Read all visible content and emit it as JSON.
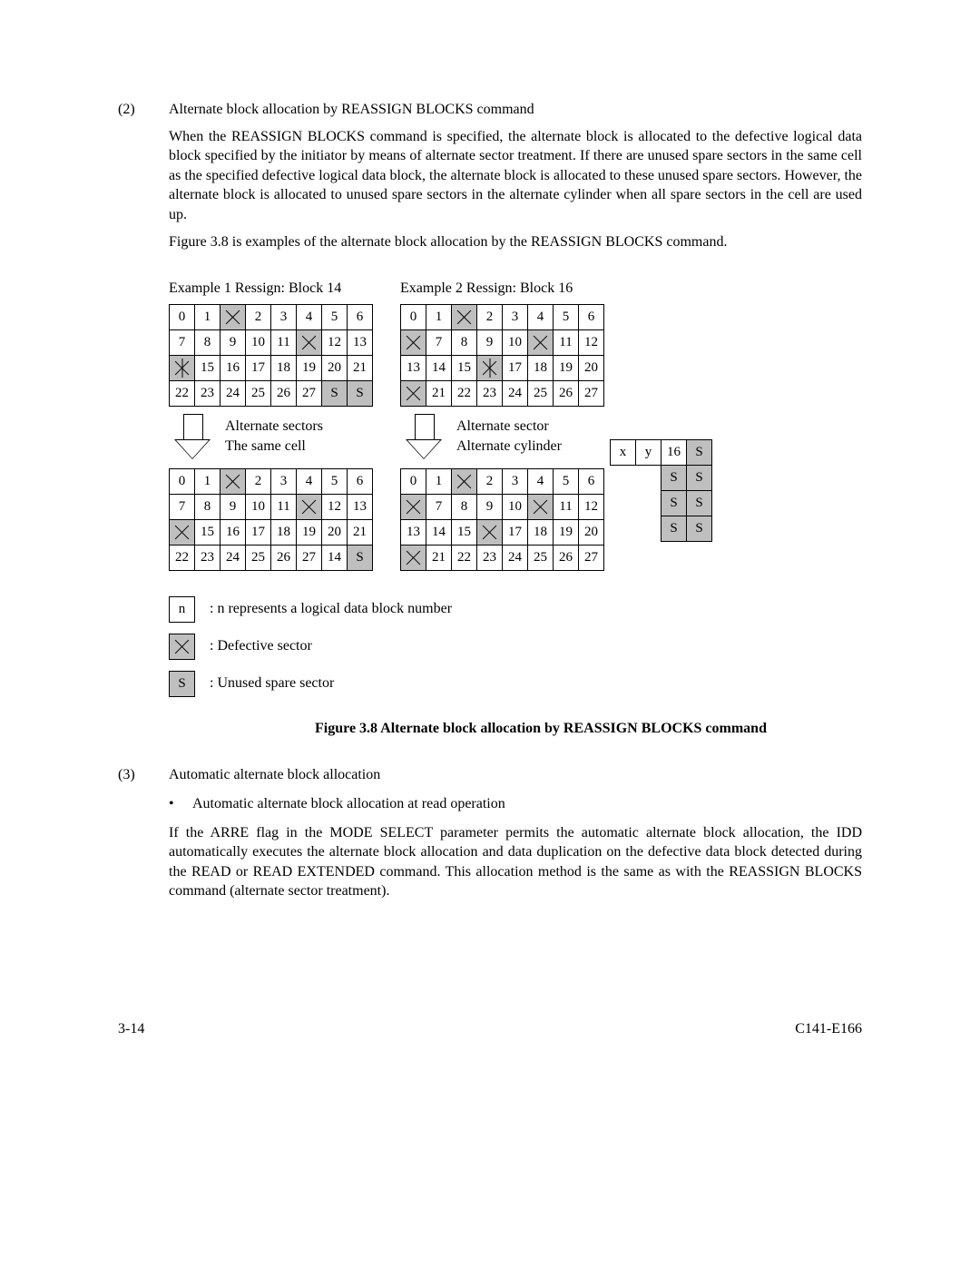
{
  "section2_num": "(2)",
  "section2_title": "Alternate block allocation by REASSIGN BLOCKS command",
  "section2_para1": "When the REASSIGN BLOCKS command is specified, the alternate block is allocated to the defective logical data block specified by the initiator by means of alternate sector treatment.  If there are unused spare sectors in the same cell as the specified defective logical data block, the alternate block is allocated to these unused spare sectors.  However, the alternate block is allocated to unused spare sectors in the alternate cylinder when all spare sectors in the cell are used up.",
  "section2_para2": "Figure 3.8 is examples of the alternate block allocation by the REASSIGN BLOCKS command.",
  "ex1_title": "Example 1 Ressign: Block 14",
  "ex2_title": "Example 2 Ressign: Block 16",
  "arrow1_line1": "Alternate sectors",
  "arrow1_line2": "The same cell",
  "arrow2_line1": "Alternate sector",
  "arrow2_line2": "Alternate cylinder",
  "ex1_top": [
    [
      {
        "t": "0"
      },
      {
        "t": "1"
      },
      {
        "x": true,
        "s": true
      },
      {
        "t": "2"
      },
      {
        "t": "3"
      },
      {
        "t": "4"
      },
      {
        "t": "5"
      },
      {
        "t": "6"
      }
    ],
    [
      {
        "t": "7"
      },
      {
        "t": "8"
      },
      {
        "t": "9"
      },
      {
        "t": "10"
      },
      {
        "t": "11"
      },
      {
        "x": true,
        "s": true
      },
      {
        "t": "12"
      },
      {
        "t": "13"
      }
    ],
    [
      {
        "x": true,
        "s": true,
        "dbl": true
      },
      {
        "t": "15"
      },
      {
        "t": "16"
      },
      {
        "t": "17"
      },
      {
        "t": "18"
      },
      {
        "t": "19"
      },
      {
        "t": "20"
      },
      {
        "t": "21"
      }
    ],
    [
      {
        "t": "22"
      },
      {
        "t": "23"
      },
      {
        "t": "24"
      },
      {
        "t": "25"
      },
      {
        "t": "26"
      },
      {
        "t": "27"
      },
      {
        "t": "S",
        "s": true
      },
      {
        "t": "S",
        "s": true
      }
    ]
  ],
  "ex1_bot": [
    [
      {
        "t": "0"
      },
      {
        "t": "1"
      },
      {
        "x": true,
        "s": true
      },
      {
        "t": "2"
      },
      {
        "t": "3"
      },
      {
        "t": "4"
      },
      {
        "t": "5"
      },
      {
        "t": "6"
      }
    ],
    [
      {
        "t": "7"
      },
      {
        "t": "8"
      },
      {
        "t": "9"
      },
      {
        "t": "10"
      },
      {
        "t": "11"
      },
      {
        "x": true,
        "s": true
      },
      {
        "t": "12"
      },
      {
        "t": "13"
      }
    ],
    [
      {
        "x": true,
        "s": true
      },
      {
        "t": "15"
      },
      {
        "t": "16"
      },
      {
        "t": "17"
      },
      {
        "t": "18"
      },
      {
        "t": "19"
      },
      {
        "t": "20"
      },
      {
        "t": "21"
      }
    ],
    [
      {
        "t": "22"
      },
      {
        "t": "23"
      },
      {
        "t": "24"
      },
      {
        "t": "25"
      },
      {
        "t": "26"
      },
      {
        "t": "27"
      },
      {
        "t": "14"
      },
      {
        "t": "S",
        "s": true
      }
    ]
  ],
  "ex2_top": [
    [
      {
        "t": "0"
      },
      {
        "t": "1"
      },
      {
        "x": true,
        "s": true
      },
      {
        "t": "2"
      },
      {
        "t": "3"
      },
      {
        "t": "4"
      },
      {
        "t": "5"
      },
      {
        "t": "6"
      }
    ],
    [
      {
        "x": true,
        "s": true
      },
      {
        "t": "7"
      },
      {
        "t": "8"
      },
      {
        "t": "9"
      },
      {
        "t": "10"
      },
      {
        "x": true,
        "s": true
      },
      {
        "t": "11"
      },
      {
        "t": "12"
      }
    ],
    [
      {
        "t": "13"
      },
      {
        "t": "14"
      },
      {
        "t": "15"
      },
      {
        "x": true,
        "s": true,
        "dbl": true
      },
      {
        "t": "17"
      },
      {
        "t": "18"
      },
      {
        "t": "19"
      },
      {
        "t": "20"
      }
    ],
    [
      {
        "x": true,
        "s": true
      },
      {
        "t": "21"
      },
      {
        "t": "22"
      },
      {
        "t": "23"
      },
      {
        "t": "24"
      },
      {
        "t": "25"
      },
      {
        "t": "26"
      },
      {
        "t": "27"
      }
    ]
  ],
  "ex2_bot": [
    [
      {
        "t": "0"
      },
      {
        "t": "1"
      },
      {
        "x": true,
        "s": true
      },
      {
        "t": "2"
      },
      {
        "t": "3"
      },
      {
        "t": "4"
      },
      {
        "t": "5"
      },
      {
        "t": "6"
      }
    ],
    [
      {
        "x": true,
        "s": true
      },
      {
        "t": "7"
      },
      {
        "t": "8"
      },
      {
        "t": "9"
      },
      {
        "t": "10"
      },
      {
        "x": true,
        "s": true
      },
      {
        "t": "11"
      },
      {
        "t": "12"
      }
    ],
    [
      {
        "t": "13"
      },
      {
        "t": "14"
      },
      {
        "t": "15"
      },
      {
        "x": true,
        "s": true
      },
      {
        "t": "17"
      },
      {
        "t": "18"
      },
      {
        "t": "19"
      },
      {
        "t": "20"
      }
    ],
    [
      {
        "x": true,
        "s": true
      },
      {
        "t": "21"
      },
      {
        "t": "22"
      },
      {
        "t": "23"
      },
      {
        "t": "24"
      },
      {
        "t": "25"
      },
      {
        "t": "26"
      },
      {
        "t": "27"
      }
    ]
  ],
  "ex2_side": [
    [
      {
        "t": "x"
      },
      {
        "t": "y"
      },
      {
        "t": "16"
      },
      {
        "t": "S",
        "s": true
      }
    ],
    [
      {
        "nb": true
      },
      {
        "nb": true
      },
      {
        "t": "S",
        "s": true
      },
      {
        "t": "S",
        "s": true
      }
    ],
    [
      {
        "nb": true
      },
      {
        "nb": true
      },
      {
        "t": "S",
        "s": true
      },
      {
        "t": "S",
        "s": true
      }
    ],
    [
      {
        "nb": true
      },
      {
        "nb": true
      },
      {
        "t": "S",
        "s": true
      },
      {
        "t": "S",
        "s": true
      }
    ]
  ],
  "legend_n_sym": "n",
  "legend_n": ":  n represents a logical data block number",
  "legend_x": ":  Defective sector",
  "legend_s_sym": "S",
  "legend_s": ":  Unused spare sector",
  "caption": "Figure 3.8     Alternate block allocation by REASSIGN BLOCKS command",
  "section3_num": "(3)",
  "section3_title": "Automatic alternate block allocation",
  "section3_bullet": "Automatic alternate block allocation at read operation",
  "section3_para": "If the ARRE flag in the MODE SELECT parameter permits the automatic alternate block allocation, the IDD automatically executes the alternate block allocation and data duplication on the defective data block detected during the READ or READ EXTENDED command.  This allocation method is the same as with the REASSIGN BLOCKS command (alternate sector treatment).",
  "footer_left": "3-14",
  "footer_right": "C141-E166"
}
